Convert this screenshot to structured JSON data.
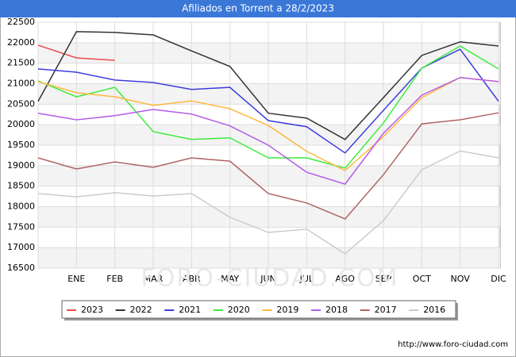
{
  "chart_data": {
    "type": "line",
    "title": "Afiliados en Torrent a 28/2/2023",
    "categories": [
      null,
      "ENE",
      "FEB",
      "MAR",
      "ABR",
      "MAY",
      "JUN",
      "JUL",
      "AGO",
      "SEP",
      "OCT",
      "NOV",
      "DIC"
    ],
    "series": [
      {
        "name": "2023",
        "color": "#e84c4c",
        "values": [
          21940,
          21630,
          21570,
          null,
          null,
          null,
          null,
          null,
          null,
          null,
          null,
          null,
          null
        ]
      },
      {
        "name": "2022",
        "color": "#333333",
        "values": [
          20570,
          22270,
          22250,
          22190,
          21800,
          21420,
          20280,
          20160,
          19640,
          20660,
          21690,
          22020,
          21920
        ]
      },
      {
        "name": "2021",
        "color": "#3c3cdc",
        "values": [
          21360,
          21280,
          21090,
          21030,
          20860,
          20910,
          20100,
          19950,
          19310,
          20350,
          21380,
          21840,
          20570
        ]
      },
      {
        "name": "2020",
        "color": "#3cec3c",
        "values": [
          21070,
          20680,
          20910,
          19830,
          19640,
          19680,
          19190,
          19190,
          18940,
          20040,
          21380,
          21920,
          21360
        ]
      },
      {
        "name": "2019",
        "color": "#ffb840",
        "values": [
          21050,
          20780,
          20680,
          20470,
          20580,
          20390,
          19980,
          19350,
          18880,
          19710,
          20660,
          21150,
          21050
        ]
      },
      {
        "name": "2018",
        "color": "#b45ce6",
        "values": [
          20280,
          20120,
          20220,
          20370,
          20260,
          19970,
          19500,
          18840,
          18550,
          19790,
          20720,
          21150,
          21050
        ]
      },
      {
        "name": "2017",
        "color": "#b06464",
        "values": [
          19190,
          18920,
          19090,
          18960,
          19190,
          19110,
          18320,
          18090,
          17700,
          18780,
          20020,
          20120,
          20290
        ]
      },
      {
        "name": "2016",
        "color": "#cccccc",
        "values": [
          18320,
          18240,
          18340,
          18260,
          18320,
          17740,
          17370,
          17450,
          16850,
          17660,
          18900,
          19360,
          19190
        ]
      }
    ],
    "ylim": [
      16500,
      22500
    ],
    "yticks": [
      16500,
      17000,
      17500,
      18000,
      18500,
      19000,
      19500,
      20000,
      20500,
      21000,
      21500,
      22000,
      22500
    ],
    "grid": true,
    "legend": "bottom",
    "watermark": "FORO-CIUDAD.COM",
    "source": "http://www.foro-ciudad.com"
  }
}
